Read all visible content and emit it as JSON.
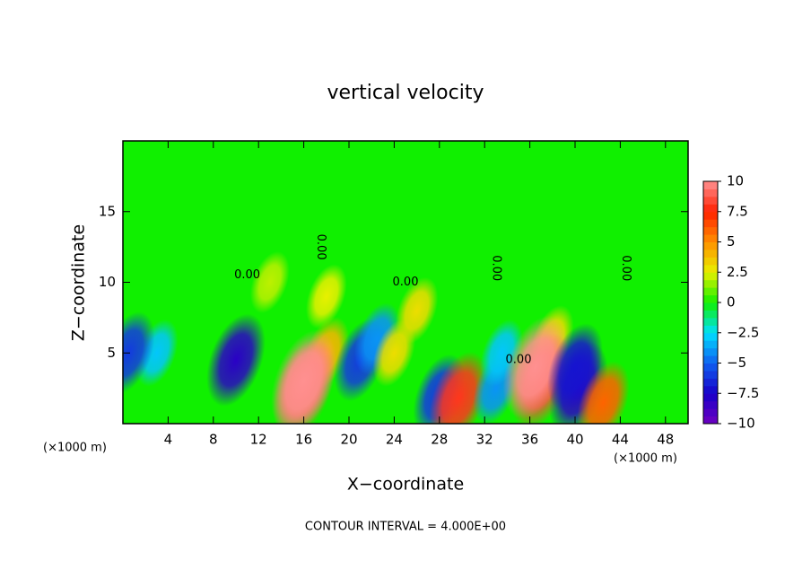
{
  "chart_data": {
    "type": "contour",
    "title": "vertical velocity",
    "x_label": "X−coordinate",
    "y_label": "Z−coordinate",
    "x_unit_left": "(×1000 m)",
    "x_unit_right": "(×1000 m)",
    "footer": "CONTOUR INTERVAL = 4.000E+00",
    "xlim": [
      0,
      50
    ],
    "ylim": [
      0,
      20
    ],
    "xticks": [
      4,
      8,
      12,
      16,
      20,
      24,
      28,
      32,
      36,
      40,
      44,
      48
    ],
    "yticks": [
      5,
      10,
      15
    ],
    "clim": [
      -10,
      10
    ],
    "cticks": [
      {
        "value": 10,
        "label": "10"
      },
      7.5,
      5,
      2.5,
      0,
      {
        "value": -2.5,
        "label": "−2.5"
      },
      {
        "value": -5,
        "label": "−5"
      },
      {
        "value": -7.5,
        "label": "−7.5"
      },
      {
        "value": -10,
        "label": "−10"
      }
    ],
    "colorscale": [
      "#7000c0",
      "#1800c8",
      "#1060f0",
      "#00e0ff",
      "#10f000",
      "#e8f000",
      "#ff9000",
      "#ff2000",
      "#ff9090"
    ],
    "field": [
      {
        "x": 3,
        "z": 5,
        "value": -3
      },
      {
        "x": 0.5,
        "z": 5,
        "value": -6
      },
      {
        "x": 10,
        "z": 4.5,
        "value": -8
      },
      {
        "x": 13,
        "z": 10,
        "value": 2
      },
      {
        "x": 18,
        "z": 9,
        "value": 2.5
      },
      {
        "x": 18,
        "z": 5,
        "value": 4
      },
      {
        "x": 16,
        "z": 2.5,
        "value": 9
      },
      {
        "x": 16,
        "z": 3,
        "value": 10
      },
      {
        "x": 21,
        "z": 4.5,
        "value": -6
      },
      {
        "x": 22.5,
        "z": 6,
        "value": -4
      },
      {
        "x": 24,
        "z": 5,
        "value": 3
      },
      {
        "x": 26,
        "z": 8,
        "value": 3
      },
      {
        "x": 28,
        "z": 2,
        "value": -6
      },
      {
        "x": 29.7,
        "z": 1.8,
        "value": 8
      },
      {
        "x": 33,
        "z": 2.5,
        "value": -4
      },
      {
        "x": 33.5,
        "z": 5,
        "value": -3
      },
      {
        "x": 38,
        "z": 6,
        "value": 3
      },
      {
        "x": 37,
        "z": 3,
        "value": 8.5
      },
      {
        "x": 36.5,
        "z": 4,
        "value": 10
      },
      {
        "x": 40.3,
        "z": 2.5,
        "value": -8
      },
      {
        "x": 40,
        "z": 4,
        "value": -7
      },
      {
        "x": 42.5,
        "z": 1.5,
        "value": 6
      }
    ],
    "contour_labels": [
      {
        "text": "0.00",
        "x": 11,
        "z": 10.5
      },
      {
        "x": 17.5,
        "z": 12.5,
        "text": "0.00"
      },
      {
        "x": 25,
        "z": 10,
        "text": "0.00"
      },
      {
        "x": 33,
        "z": 11,
        "text": "0.00"
      },
      {
        "x": 35,
        "z": 4.5,
        "text": "0.00"
      },
      {
        "x": 44.5,
        "z": 11,
        "text": "0.00"
      }
    ]
  }
}
